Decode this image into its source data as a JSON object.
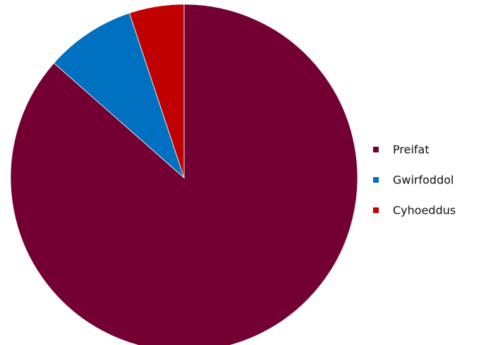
{
  "chart_data": {
    "type": "pie",
    "start_angle_deg": 0,
    "direction": "clockwise",
    "slices": [
      {
        "name": "Preifat",
        "value": 86.5,
        "color": "#740033"
      },
      {
        "name": "Gwirfoddol",
        "value": 8.4,
        "color": "#0070C0"
      },
      {
        "name": "Cyhoeddus",
        "value": 5.1,
        "color": "#C00000"
      }
    ],
    "legend": {
      "position": "right",
      "items": [
        "Preifat",
        "Gwirfoddol",
        "Cyhoeddus"
      ]
    }
  }
}
